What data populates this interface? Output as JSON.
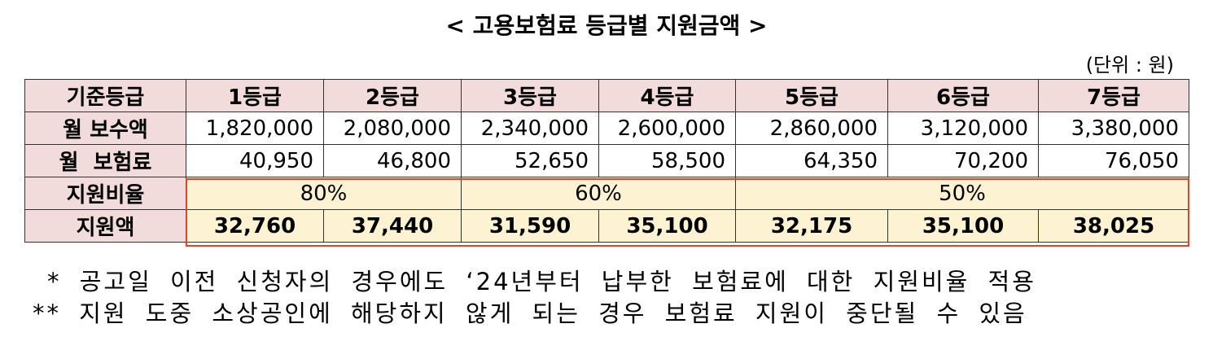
{
  "title": "< 고용보험료 등급별 지원금액 >",
  "unit": "(단위 : 원)",
  "table": {
    "header": [
      "기준등급",
      "1등급",
      "2등급",
      "3등급",
      "4등급",
      "5등급",
      "6등급",
      "7등급"
    ],
    "rows": [
      [
        "월 보수액",
        "1,820,000",
        "2,080,000",
        "2,340,000",
        "2,600,000",
        "2,860,000",
        "3,120,000",
        "3,380,000"
      ],
      [
        "월  보험료",
        "40,950",
        "46,800",
        "52,650",
        "58,500",
        "64,350",
        "70,200",
        "76,050"
      ],
      [
        "지원비율",
        "80%",
        "60%",
        "50%"
      ],
      [
        "지원액",
        "32,760",
        "37,440",
        "31,590",
        "35,100",
        "32,175",
        "35,100",
        "38,025"
      ]
    ]
  },
  "notes": [
    "* 공고일 이전 신청자의 경우에도 ‘24년부터 납부한 보험료에 대한 지원비율 적용",
    "** 지원 도중 소상공인에 해당하지 않게 되는 경우 보험료 지원이 중단될 수 있음"
  ]
}
